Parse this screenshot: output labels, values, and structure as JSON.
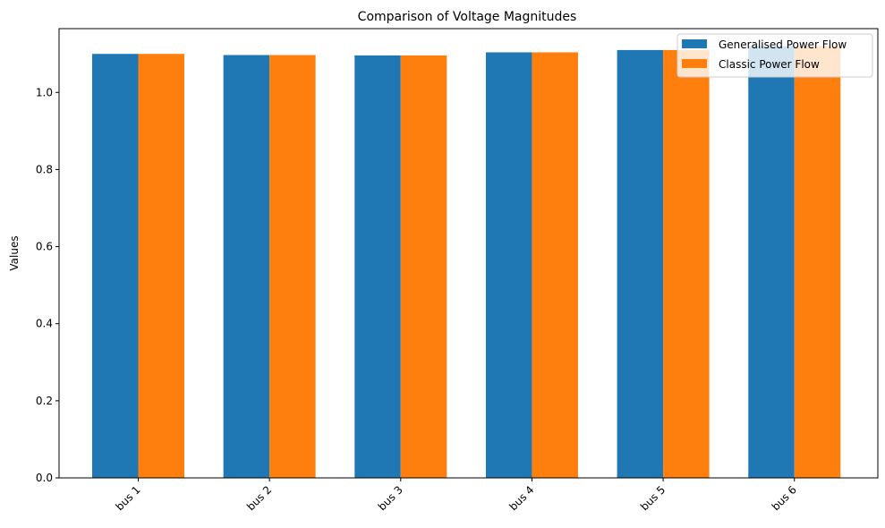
{
  "chart_data": {
    "type": "bar",
    "title": "Comparison of Voltage Magnitudes",
    "xlabel": "",
    "ylabel": "Values",
    "categories": [
      "bus 1",
      "bus 2",
      "bus 3",
      "bus 4",
      "bus 5",
      "bus 6"
    ],
    "series": [
      {
        "name": "Generalised Power Flow",
        "color": "#1f77b4",
        "values": [
          1.1,
          1.097,
          1.096,
          1.104,
          1.11,
          1.12
        ]
      },
      {
        "name": "Classic Power Flow",
        "color": "#ff7f0e",
        "values": [
          1.1,
          1.097,
          1.096,
          1.104,
          1.11,
          1.12
        ]
      }
    ],
    "ylim": [
      0,
      1.1655
    ],
    "yticks": [
      0.0,
      0.2,
      0.4,
      0.6,
      0.8,
      1.0
    ],
    "ytick_labels": [
      "0.0",
      "0.2",
      "0.4",
      "0.6",
      "0.8",
      "1.0"
    ],
    "grid": false,
    "legend_position": "top-right"
  }
}
